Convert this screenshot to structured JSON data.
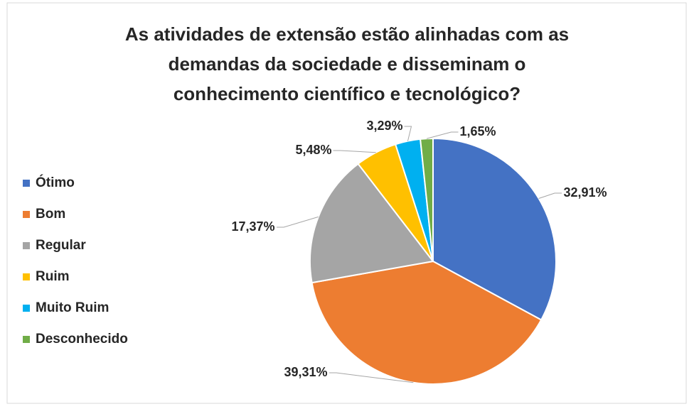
{
  "chart_data": {
    "type": "pie",
    "title": [
      "As atividades de extensão estão alinhadas com as",
      "demandas da sociedade e disseminam o",
      "conhecimento científico e tecnológico?"
    ],
    "categories": [
      "Ótimo",
      "Bom",
      "Regular",
      "Ruim",
      "Muito Ruim",
      "Desconhecido"
    ],
    "values": [
      32.91,
      39.31,
      17.37,
      5.48,
      3.29,
      1.65
    ],
    "value_labels": [
      "32,91%",
      "39,31%",
      "17,37%",
      "5,48%",
      "3,29%",
      "1,65%"
    ],
    "colors": [
      "#4472c4",
      "#ed7d31",
      "#a5a5a5",
      "#ffc000",
      "#00b0f0",
      "#70ad47"
    ],
    "legend": "left"
  }
}
